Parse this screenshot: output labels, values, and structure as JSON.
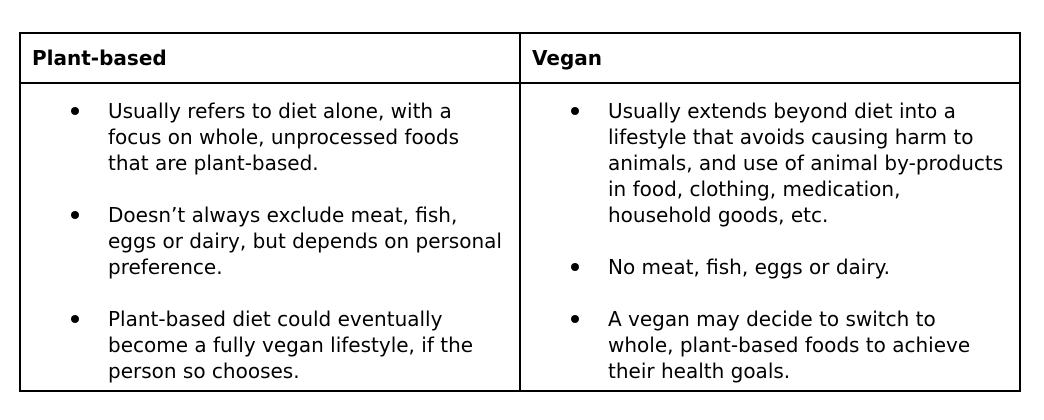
{
  "table": {
    "headers": {
      "plant_based": "Plant-based",
      "vegan": "Vegan"
    },
    "plant_based": [
      "Usually refers to diet alone, with a focus on whole, unprocessed foods that are plant-based.",
      "Doesn’t always exclude meat, fish, eggs or dairy, but depends on personal preference.",
      "Plant-based diet could eventually become a fully vegan lifestyle, if the person so chooses."
    ],
    "vegan": [
      "Usually extends beyond diet into a lifestyle that avoids causing harm to animals, and use of animal by-products in food, clothing, medication, household goods, etc.",
      "No meat, fish, eggs or dairy.",
      "A vegan may decide to switch to whole, plant-based foods to achieve their health goals."
    ]
  }
}
